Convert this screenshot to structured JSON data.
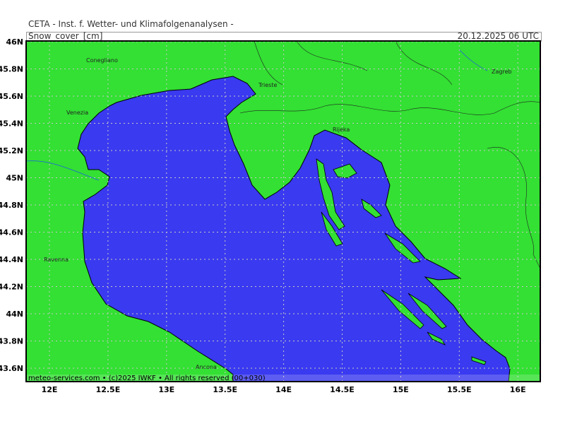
{
  "header": {
    "title": "CETA - Inst. f. Wetter- und Klimafolgenanalysen -",
    "parameter": "Snow_cover_[cm]",
    "valid_time": "20.12.2025 06 UTC"
  },
  "footer": {
    "credit": "meteo-services.com • (c)2025 IWKF • All rights reserved (00+030)"
  },
  "map": {
    "lon_ticks": [
      "12E",
      "12.5E",
      "13E",
      "13.5E",
      "14E",
      "14.5E",
      "15E",
      "15.5E",
      "16E"
    ],
    "lat_ticks": [
      "46N",
      "45.8N",
      "45.6N",
      "45.4N",
      "45.2N",
      "45N",
      "44.8N",
      "44.6N",
      "44.4N",
      "44.2N",
      "44N",
      "43.8N",
      "43.6N"
    ],
    "cities": [
      "Conegliano",
      "Venezia",
      "Trieste",
      "Rijeka",
      "Zagreb",
      "Ravenna",
      "Ancona"
    ],
    "colors": {
      "land_no_snow": "#33e033",
      "sea": "#3a3af0",
      "grid": "#c8c8c8"
    }
  }
}
